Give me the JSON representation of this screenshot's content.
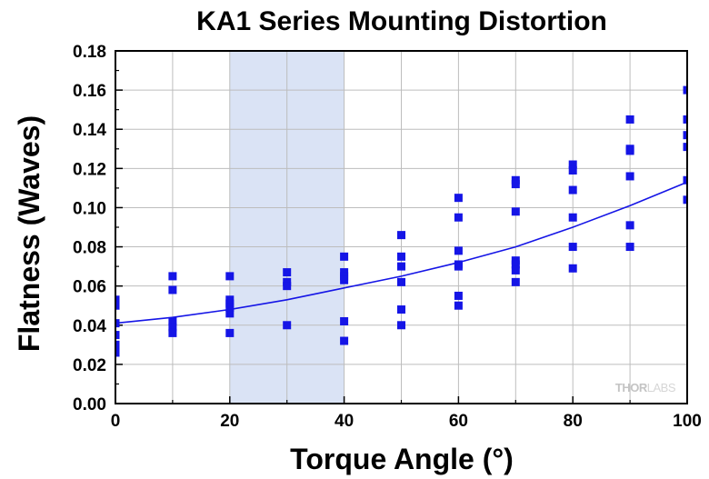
{
  "chart_data": {
    "type": "scatter",
    "title": "KA1 Series Mounting Distortion",
    "xlabel": "Torque Angle (°)",
    "ylabel": "Flatness (Waves)",
    "xlim": [
      0,
      100
    ],
    "ylim": [
      0,
      0.18
    ],
    "xticks": [
      0,
      20,
      40,
      60,
      80,
      100
    ],
    "yticks": [
      0.0,
      0.02,
      0.04,
      0.06,
      0.08,
      0.1,
      0.12,
      0.14,
      0.16,
      0.18
    ],
    "grid": true,
    "highlight_region": {
      "x": [
        20,
        40
      ],
      "color": "#dae3f5"
    },
    "marker_color": "#1515e6",
    "series": [
      {
        "type": "scatter",
        "points": [
          [
            0,
            0.053
          ],
          [
            0,
            0.05
          ],
          [
            0,
            0.041
          ],
          [
            0,
            0.035
          ],
          [
            0,
            0.03
          ],
          [
            0,
            0.026
          ],
          [
            10,
            0.065
          ],
          [
            10,
            0.058
          ],
          [
            10,
            0.042
          ],
          [
            10,
            0.039
          ],
          [
            10,
            0.036
          ],
          [
            20,
            0.065
          ],
          [
            20,
            0.053
          ],
          [
            20,
            0.051
          ],
          [
            20,
            0.049
          ],
          [
            20,
            0.046
          ],
          [
            20,
            0.036
          ],
          [
            30,
            0.067
          ],
          [
            30,
            0.062
          ],
          [
            30,
            0.06
          ],
          [
            30,
            0.04
          ],
          [
            40,
            0.075
          ],
          [
            40,
            0.067
          ],
          [
            40,
            0.065
          ],
          [
            40,
            0.063
          ],
          [
            40,
            0.042
          ],
          [
            40,
            0.032
          ],
          [
            50,
            0.086
          ],
          [
            50,
            0.075
          ],
          [
            50,
            0.07
          ],
          [
            50,
            0.062
          ],
          [
            50,
            0.048
          ],
          [
            50,
            0.04
          ],
          [
            60,
            0.105
          ],
          [
            60,
            0.095
          ],
          [
            60,
            0.078
          ],
          [
            60,
            0.071
          ],
          [
            60,
            0.07
          ],
          [
            60,
            0.055
          ],
          [
            60,
            0.05
          ],
          [
            70,
            0.114
          ],
          [
            70,
            0.112
          ],
          [
            70,
            0.098
          ],
          [
            70,
            0.073
          ],
          [
            70,
            0.071
          ],
          [
            70,
            0.068
          ],
          [
            70,
            0.062
          ],
          [
            80,
            0.122
          ],
          [
            80,
            0.119
          ],
          [
            80,
            0.109
          ],
          [
            80,
            0.095
          ],
          [
            80,
            0.08
          ],
          [
            80,
            0.069
          ],
          [
            90,
            0.145
          ],
          [
            90,
            0.13
          ],
          [
            90,
            0.129
          ],
          [
            90,
            0.116
          ],
          [
            90,
            0.091
          ],
          [
            90,
            0.08
          ],
          [
            100,
            0.16
          ],
          [
            100,
            0.145
          ],
          [
            100,
            0.137
          ],
          [
            100,
            0.131
          ],
          [
            100,
            0.114
          ],
          [
            100,
            0.104
          ]
        ]
      },
      {
        "type": "line",
        "points": [
          [
            0,
            0.041
          ],
          [
            10,
            0.044
          ],
          [
            20,
            0.048
          ],
          [
            30,
            0.053
          ],
          [
            40,
            0.059
          ],
          [
            50,
            0.065
          ],
          [
            60,
            0.072
          ],
          [
            70,
            0.08
          ],
          [
            80,
            0.09
          ],
          [
            90,
            0.101
          ],
          [
            100,
            0.113
          ]
        ]
      }
    ],
    "watermark": {
      "bold_part": "THOR",
      "light_part": "LABS"
    }
  }
}
